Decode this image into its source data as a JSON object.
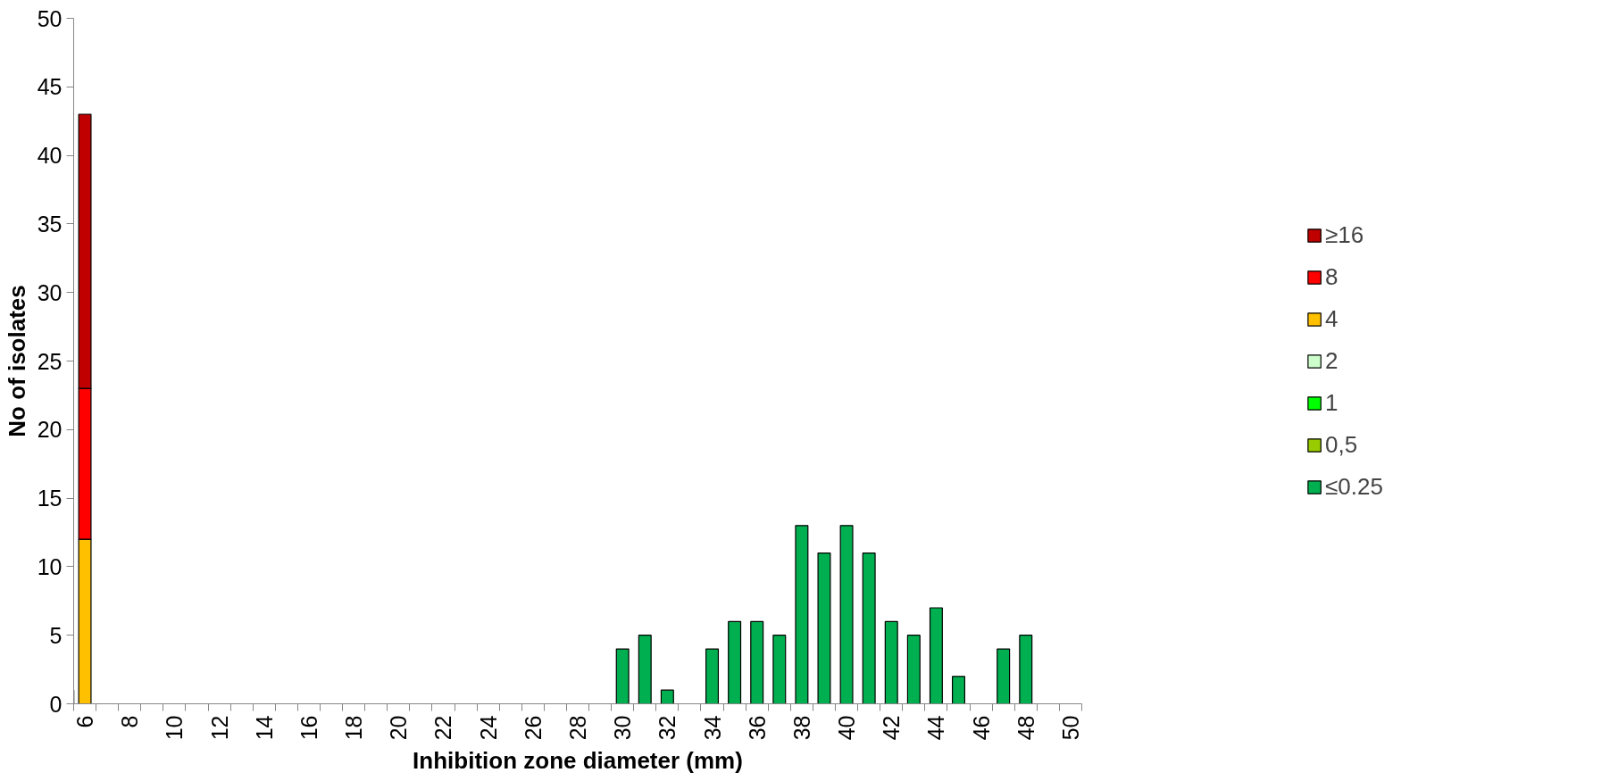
{
  "chart_data": {
    "type": "bar",
    "stacked": true,
    "xlabel": "Inhibition zone diameter (mm)",
    "ylabel": "No of isolates",
    "categories": [
      "6",
      null,
      "8",
      null,
      "10",
      null,
      "12",
      null,
      "14",
      null,
      "16",
      null,
      "18",
      null,
      "20",
      null,
      "22",
      null,
      "24",
      null,
      "26",
      null,
      "28",
      null,
      "30",
      null,
      "32",
      null,
      "34",
      null,
      "36",
      null,
      "38",
      null,
      "40",
      null,
      "42",
      null,
      "44",
      null,
      "46",
      null,
      "48",
      null,
      "50"
    ],
    "series": [
      {
        "name": "≤0.25",
        "color": "#00b050",
        "values": [
          0,
          0,
          0,
          0,
          0,
          0,
          0,
          0,
          0,
          0,
          0,
          0,
          0,
          0,
          0,
          0,
          0,
          0,
          0,
          0,
          0,
          0,
          0,
          0,
          4,
          5,
          1,
          0,
          4,
          6,
          6,
          5,
          13,
          11,
          13,
          11,
          6,
          5,
          7,
          2,
          0,
          4,
          5,
          0,
          0
        ]
      },
      {
        "name": "0,5",
        "color": "#99cc00",
        "values": [
          0,
          0,
          0,
          0,
          0,
          0,
          0,
          0,
          0,
          0,
          0,
          0,
          0,
          0,
          0,
          0,
          0,
          0,
          0,
          0,
          0,
          0,
          0,
          0,
          0,
          0,
          0,
          0,
          0,
          0,
          0,
          0,
          0,
          0,
          0,
          0,
          0,
          0,
          0,
          0,
          0,
          0,
          0,
          0,
          0
        ]
      },
      {
        "name": "1",
        "color": "#00ff00",
        "values": [
          0,
          0,
          0,
          0,
          0,
          0,
          0,
          0,
          0,
          0,
          0,
          0,
          0,
          0,
          0,
          0,
          0,
          0,
          0,
          0,
          0,
          0,
          0,
          0,
          0,
          0,
          0,
          0,
          0,
          0,
          0,
          0,
          0,
          0,
          0,
          0,
          0,
          0,
          0,
          0,
          0,
          0,
          0,
          0,
          0
        ]
      },
      {
        "name": "2",
        "color": "#ccffcc",
        "values": [
          0,
          0,
          0,
          0,
          0,
          0,
          0,
          0,
          0,
          0,
          0,
          0,
          0,
          0,
          0,
          0,
          0,
          0,
          0,
          0,
          0,
          0,
          0,
          0,
          0,
          0,
          0,
          0,
          0,
          0,
          0,
          0,
          0,
          0,
          0,
          0,
          0,
          0,
          0,
          0,
          0,
          0,
          0,
          0,
          0
        ]
      },
      {
        "name": "4",
        "color": "#ffc000",
        "values": [
          12,
          0,
          0,
          0,
          0,
          0,
          0,
          0,
          0,
          0,
          0,
          0,
          0,
          0,
          0,
          0,
          0,
          0,
          0,
          0,
          0,
          0,
          0,
          0,
          0,
          0,
          0,
          0,
          0,
          0,
          0,
          0,
          0,
          0,
          0,
          0,
          0,
          0,
          0,
          0,
          0,
          0,
          0,
          0,
          0
        ]
      },
      {
        "name": "8",
        "color": "#ff0000",
        "values": [
          11,
          0,
          0,
          0,
          0,
          0,
          0,
          0,
          0,
          0,
          0,
          0,
          0,
          0,
          0,
          0,
          0,
          0,
          0,
          0,
          0,
          0,
          0,
          0,
          0,
          0,
          0,
          0,
          0,
          0,
          0,
          0,
          0,
          0,
          0,
          0,
          0,
          0,
          0,
          0,
          0,
          0,
          0,
          0,
          0
        ]
      },
      {
        "name": "≥16",
        "color": "#c00000",
        "values": [
          20,
          0,
          0,
          0,
          0,
          0,
          0,
          0,
          0,
          0,
          0,
          0,
          0,
          0,
          0,
          0,
          0,
          0,
          0,
          0,
          0,
          0,
          0,
          0,
          0,
          0,
          0,
          0,
          0,
          0,
          0,
          0,
          0,
          0,
          0,
          0,
          0,
          0,
          0,
          0,
          0,
          0,
          0,
          0,
          0
        ]
      }
    ],
    "ylim": [
      0,
      50
    ],
    "yticks": [
      0,
      5,
      10,
      15,
      20,
      25,
      30,
      35,
      40,
      45,
      50
    ],
    "grid": false,
    "legend": "right"
  }
}
